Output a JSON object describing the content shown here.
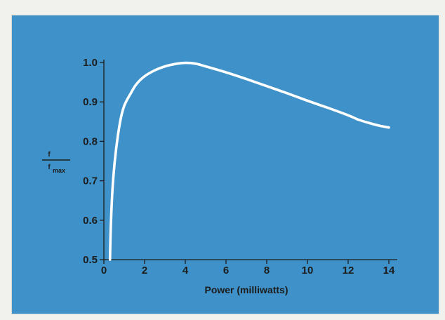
{
  "chart_data": {
    "type": "line",
    "xlabel": "Power (milliwatts)",
    "ylabel": {
      "numerator": "f",
      "denominator": "f",
      "denominator_subscript": "max"
    },
    "xlim": [
      0,
      14
    ],
    "ylim": [
      0.5,
      1.0
    ],
    "x_ticks": [
      0,
      2,
      4,
      6,
      8,
      10,
      12,
      14
    ],
    "x_tick_labels": [
      "0",
      "2",
      "4",
      "6",
      "8",
      "10",
      "12",
      "14"
    ],
    "y_ticks": [
      0.5,
      0.6,
      0.7,
      0.8,
      0.9,
      1.0
    ],
    "y_tick_labels": [
      "0.5",
      "0.6",
      "0.7",
      "0.8",
      "0.9",
      "1.0"
    ],
    "grid": false,
    "line_color": "#ffffff",
    "background_color": "#3f92c9",
    "series": [
      {
        "x": [
          0.3,
          0.35,
          0.45,
          0.6,
          0.8,
          1.0,
          1.3,
          1.6,
          2.0,
          2.5,
          3.0,
          3.5,
          4.0,
          4.5,
          5.0,
          6.0,
          7.0,
          8.0,
          9.0,
          10.0,
          11.0,
          12.0,
          12.5,
          13.0,
          13.5,
          14.0
        ],
        "y": [
          0.5,
          0.6,
          0.7,
          0.78,
          0.85,
          0.89,
          0.92,
          0.945,
          0.965,
          0.98,
          0.99,
          0.996,
          0.999,
          0.997,
          0.99,
          0.975,
          0.958,
          0.94,
          0.922,
          0.903,
          0.885,
          0.866,
          0.855,
          0.847,
          0.84,
          0.835
        ]
      }
    ]
  }
}
